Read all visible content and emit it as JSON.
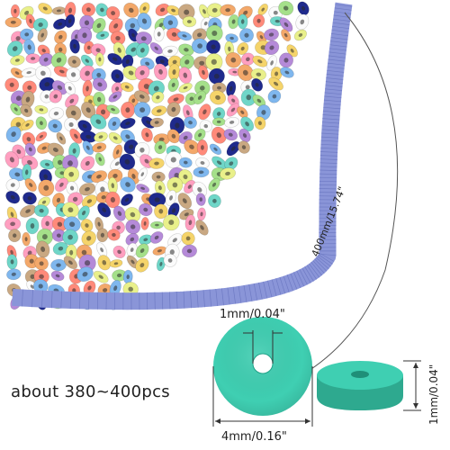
{
  "product": {
    "count_label": "about 380~400pcs",
    "strand_length_label": "400mm/15.74\"",
    "hole_size_label": "1mm/0.04\"",
    "diameter_label": "4mm/0.16\"",
    "thickness_label": "1mm/0.04\""
  },
  "colors": {
    "strand": "#8a95d8",
    "strand_edge": "#6f7bc4",
    "bead_detail": "#3fcfb2",
    "bead_detail_shadow": "#2ea98f",
    "bead_palette": [
      "#1f2a8c",
      "#f3a86a",
      "#fbfbfb",
      "#e9f08a",
      "#6fd6c8",
      "#ff8a7a",
      "#b58ad8",
      "#7fb7ee",
      "#f5d46a",
      "#ff9fc0",
      "#a5e08a",
      "#c9a882"
    ]
  },
  "icons": {
    "dimension_arrow": "dimension-arrow-icon"
  }
}
